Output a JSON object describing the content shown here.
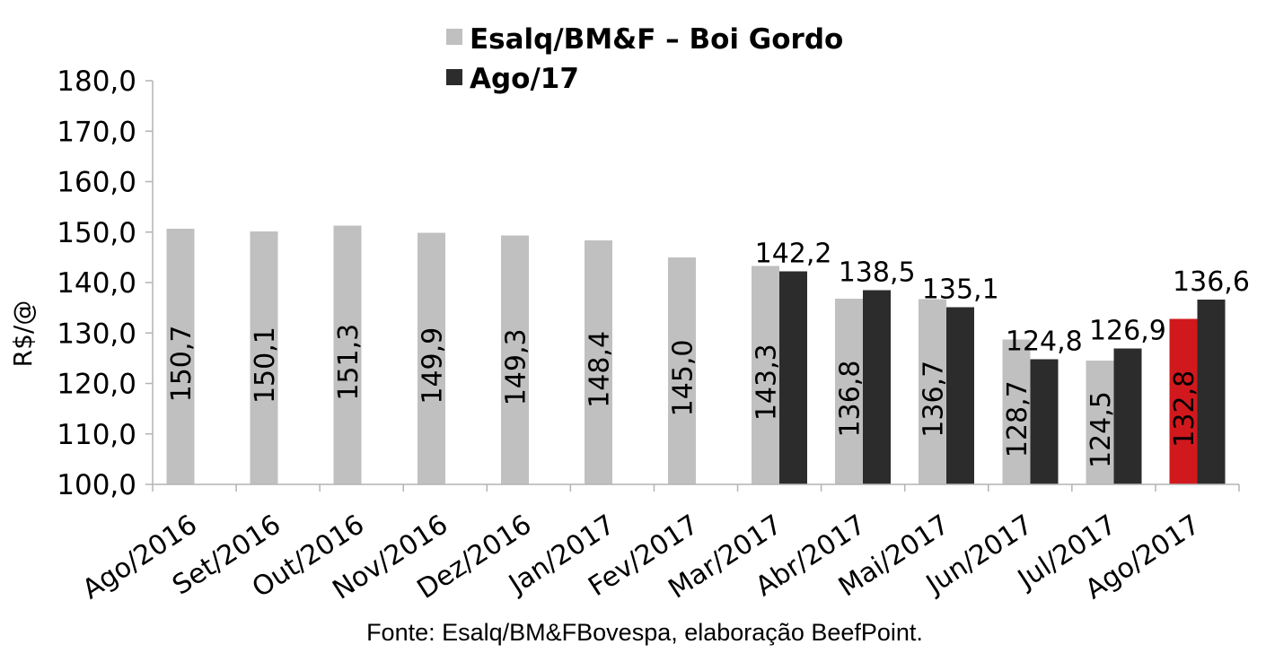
{
  "chart_data": {
    "type": "bar",
    "ylabel": "R$/@",
    "ylim": [
      100,
      180
    ],
    "yticks": [
      100,
      110,
      120,
      130,
      140,
      150,
      160,
      170,
      180
    ],
    "categories": [
      "Ago/2016",
      "Set/2016",
      "Out/2016",
      "Nov/2016",
      "Dez/2016",
      "Jan/2017",
      "Fev/2017",
      "Mar/2017",
      "Abr/2017",
      "Mai/2017",
      "Jun/2017",
      "Jul/2017",
      "Ago/2017"
    ],
    "series": [
      {
        "name": "Esalq/BM&F – Boi Gordo",
        "color": "#c0c0c0",
        "values": [
          150.7,
          150.1,
          151.3,
          149.9,
          149.3,
          148.4,
          145.0,
          143.3,
          136.8,
          136.7,
          128.7,
          124.5,
          132.8
        ]
      },
      {
        "name": "Ago/17",
        "color": "#2c2c2c",
        "values": [
          null,
          null,
          null,
          null,
          null,
          null,
          null,
          142.2,
          138.5,
          135.1,
          124.8,
          126.9,
          136.6
        ]
      }
    ],
    "highlight": {
      "series": 0,
      "index": 12,
      "color": "#d1191d"
    },
    "legend": "top-center",
    "grid": false,
    "source": "Fonte: Esalq/BM&FBovespa, elaboração BeefPoint."
  }
}
